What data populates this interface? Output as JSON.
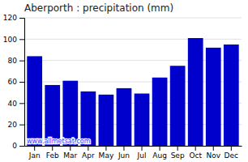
{
  "chart_data": {
    "type": "bar",
    "title": "Aberporth : precipitation (mm)",
    "categories": [
      "Jan",
      "Feb",
      "Mar",
      "Apr",
      "May",
      "Jun",
      "Jul",
      "Aug",
      "Sep",
      "Oct",
      "Nov",
      "Dec"
    ],
    "values": [
      84,
      57,
      61,
      51,
      48,
      54,
      49,
      64,
      75,
      101,
      92,
      95
    ],
    "color": "#0000cc",
    "ylim": [
      0,
      120
    ],
    "yticks": [
      0,
      20,
      40,
      60,
      80,
      100,
      120
    ],
    "grid": true,
    "annotations": [
      "www.allmetsat.com"
    ]
  }
}
